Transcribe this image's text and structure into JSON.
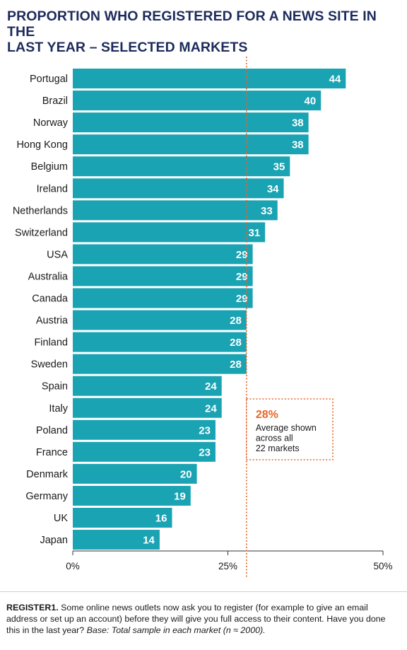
{
  "chart_data": {
    "type": "bar",
    "orientation": "horizontal",
    "title_lines": [
      "PROPORTION WHO REGISTERED FOR A NEWS SITE IN THE",
      "LAST YEAR – SELECTED MARKETS"
    ],
    "categories": [
      "Portugal",
      "Brazil",
      "Norway",
      "Hong Kong",
      "Belgium",
      "Ireland",
      "Netherlands",
      "Switzerland",
      "USA",
      "Australia",
      "Canada",
      "Austria",
      "Finland",
      "Sweden",
      "Spain",
      "Italy",
      "Poland",
      "France",
      "Denmark",
      "Germany",
      "UK",
      "Japan"
    ],
    "values": [
      44,
      40,
      38,
      38,
      35,
      34,
      33,
      31,
      29,
      29,
      29,
      28,
      28,
      28,
      24,
      24,
      23,
      23,
      20,
      19,
      16,
      14
    ],
    "xlim": [
      0,
      50
    ],
    "ticks": [
      {
        "value": 0,
        "label": "0%"
      },
      {
        "value": 25,
        "label": "25%"
      },
      {
        "value": 50,
        "label": "50%"
      }
    ],
    "grid": false,
    "average": {
      "value": 28,
      "label": "28%",
      "text_lines": [
        "Average shown",
        "across all",
        "22 markets"
      ]
    },
    "colors": {
      "bar": "#1aa3b3",
      "value_text": "#ffffff",
      "average": "#e8652b",
      "title": "#1d2b5c"
    }
  },
  "footer": {
    "label": "REGISTER1.",
    "text": " Some online news outlets now ask you to register (for example to give an email address or set up an account) before they will give you full access to their content. Have you done this in the last year? ",
    "base": "Base: Total sample in each market (n ≈ 2000)."
  }
}
